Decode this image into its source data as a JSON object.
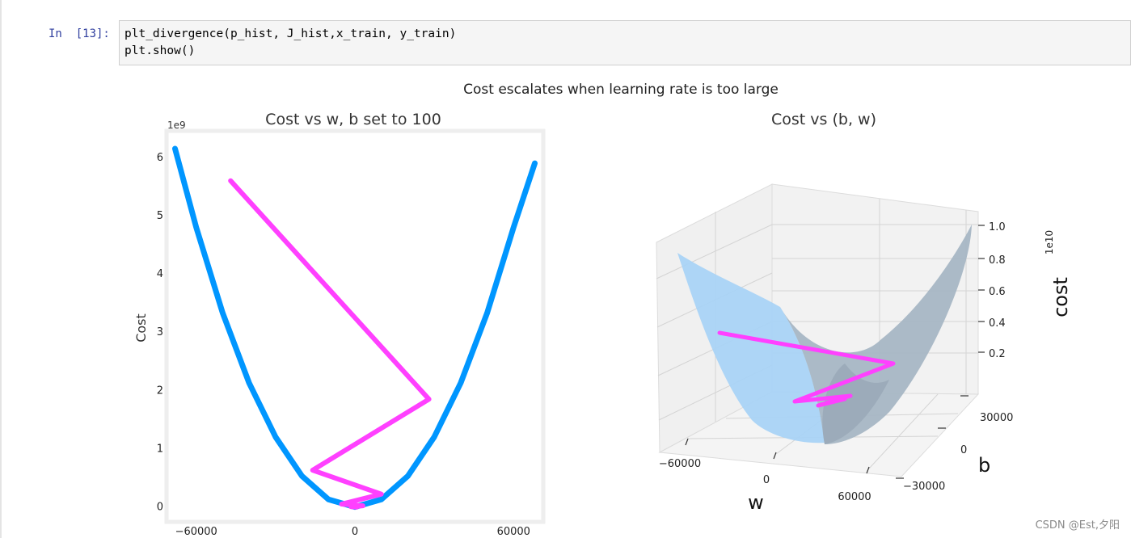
{
  "cell": {
    "prompt": "In  [13]:",
    "code_lines": [
      "plt_divergence(p_hist, J_hist,x_train, y_train)",
      "plt.show()"
    ]
  },
  "figure": {
    "suptitle": "Cost escalates when learning rate is too large"
  },
  "watermark": "CSDN @Est,夕阳",
  "colors": {
    "curve": "#0096ff",
    "path": "#ff40ff",
    "surface_front": "#a8d4f7",
    "surface_back": "#9fb2c4"
  },
  "chart_data": [
    {
      "type": "line",
      "title": "Cost vs w, b set to 100",
      "xlabel": "",
      "ylabel": "Cost",
      "y_offset_label": "1e9",
      "xlim": [
        -70000,
        70000
      ],
      "ylim": [
        -0.2,
        6.4
      ],
      "x_ticks": [
        -60000,
        0,
        60000
      ],
      "x_tick_labels": [
        "−60000",
        "0",
        "60000"
      ],
      "y_ticks": [
        0,
        1,
        2,
        3,
        4,
        5,
        6
      ],
      "y_tick_labels": [
        "0",
        "1",
        "2",
        "3",
        "4",
        "5",
        "6"
      ],
      "grid": false,
      "series": [
        {
          "role": "cost-curve",
          "x": [
            -68000,
            -60000,
            -50000,
            -40000,
            -30000,
            -20000,
            -10000,
            0,
            10000,
            20000,
            30000,
            40000,
            50000,
            60000,
            68000
          ],
          "y": [
            6.15,
            4.8,
            3.33,
            2.13,
            1.2,
            0.53,
            0.13,
            0.0,
            0.13,
            0.53,
            1.2,
            2.13,
            3.33,
            4.8,
            5.9
          ]
        },
        {
          "role": "gradient-descent-path",
          "x": [
            -47000,
            28000,
            -16000,
            10000,
            -5000,
            3000,
            -1500,
            800
          ],
          "y": [
            5.6,
            1.85,
            0.63,
            0.22,
            0.05,
            0.02,
            0.005,
            0.0
          ]
        }
      ]
    },
    {
      "type": "surface3d",
      "title": "Cost vs (b, w)",
      "xlabel": "w",
      "ylabel": "b",
      "zlabel": "cost",
      "z_offset_label": "1e10",
      "x_tick_labels": [
        "−60000",
        "0",
        "60000"
      ],
      "y_tick_labels": [
        "30000",
        "0",
        "−30000"
      ],
      "z_tick_labels": [
        "1.0",
        "0.8",
        "0.6",
        "0.4",
        "0.2"
      ],
      "grid": true
    }
  ]
}
